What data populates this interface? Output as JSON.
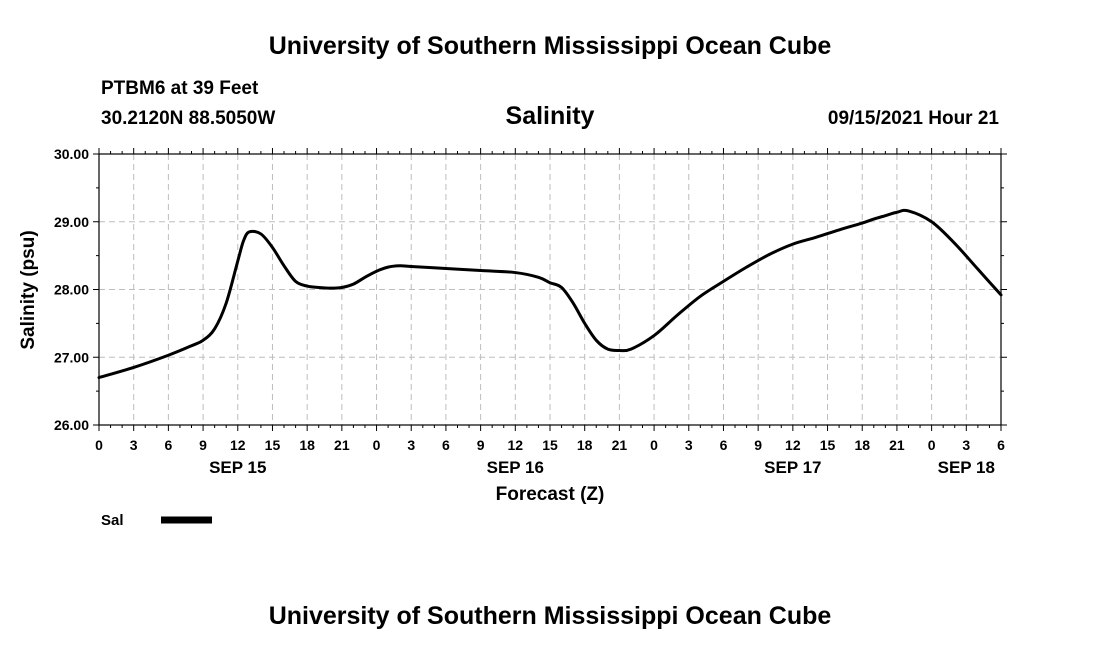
{
  "page": {
    "title_top": "University of Southern Mississippi Ocean Cube",
    "title_bottom": "University of Southern Mississippi Ocean Cube",
    "station_line": "PTBM6 at 39 Feet",
    "coords_line": "30.2120N  88.5050W",
    "datetime_line": "09/15/2021 Hour 21"
  },
  "chart_data": {
    "type": "line",
    "title": "Salinity",
    "xlabel": "Forecast (Z)",
    "ylabel": "Salinity (psu)",
    "ylim": [
      26.0,
      30.0
    ],
    "yticks": [
      "26.00",
      "27.00",
      "28.00",
      "29.00",
      "30.00"
    ],
    "xlim": [
      0,
      78
    ],
    "xtick_labels": [
      "0",
      "3",
      "6",
      "9",
      "12",
      "15",
      "18",
      "21",
      "0",
      "3",
      "6",
      "9",
      "12",
      "15",
      "18",
      "21",
      "0",
      "3",
      "6",
      "9",
      "12",
      "15",
      "18",
      "21",
      "0",
      "3",
      "6"
    ],
    "day_labels": [
      {
        "label": "SEP 15",
        "hour": 12
      },
      {
        "label": "SEP 16",
        "hour": 36
      },
      {
        "label": "SEP 17",
        "hour": 60
      },
      {
        "label": "SEP 18",
        "hour": 75
      }
    ],
    "grid": true,
    "legend_position": "bottom-left",
    "series": [
      {
        "name": "Sal",
        "color": "#000000",
        "x": [
          0,
          3,
          6,
          8,
          9,
          10,
          11,
          12,
          12.5,
          13,
          14,
          15,
          16,
          17,
          18,
          19,
          20,
          21,
          22,
          23,
          24,
          25,
          26,
          27,
          30,
          33,
          36,
          38,
          39,
          40,
          41,
          42,
          43,
          44,
          45,
          46,
          48,
          50,
          52,
          54,
          56,
          58,
          60,
          62,
          64,
          66,
          67,
          68,
          69,
          70,
          72,
          74,
          76,
          78
        ],
        "y": [
          26.7,
          26.85,
          27.03,
          27.17,
          27.25,
          27.42,
          27.8,
          28.42,
          28.72,
          28.85,
          28.82,
          28.62,
          28.35,
          28.12,
          28.05,
          28.03,
          28.02,
          28.03,
          28.08,
          28.18,
          28.27,
          28.33,
          28.35,
          28.34,
          28.31,
          28.28,
          28.25,
          28.18,
          28.1,
          28.03,
          27.8,
          27.5,
          27.25,
          27.12,
          27.1,
          27.12,
          27.32,
          27.62,
          27.9,
          28.12,
          28.33,
          28.52,
          28.67,
          28.77,
          28.88,
          28.98,
          29.04,
          29.09,
          29.14,
          29.16,
          29.0,
          28.68,
          28.3,
          27.92
        ]
      }
    ]
  }
}
